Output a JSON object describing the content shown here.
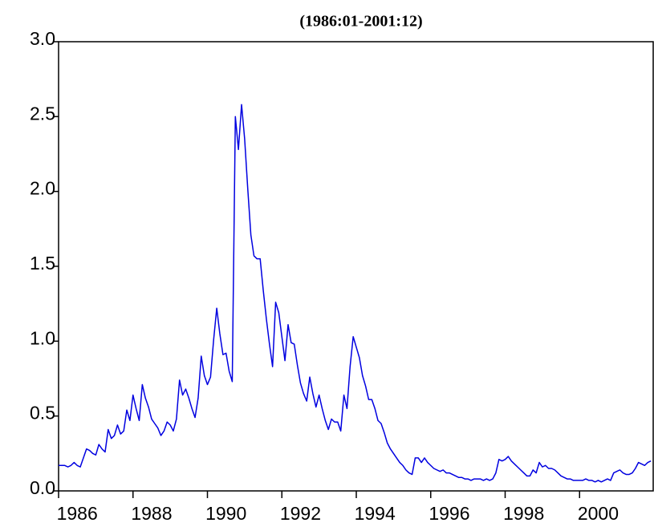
{
  "chart_data": {
    "type": "line",
    "title": "(1986:01-2001:12)",
    "x": [
      1986,
      1986.083,
      1986.167,
      1986.25,
      1986.333,
      1986.417,
      1986.5,
      1986.583,
      1986.667,
      1986.75,
      1986.833,
      1986.917,
      1987,
      1987.083,
      1987.167,
      1987.25,
      1987.333,
      1987.417,
      1987.5,
      1987.583,
      1987.667,
      1987.75,
      1987.833,
      1987.917,
      1988,
      1988.083,
      1988.167,
      1988.25,
      1988.333,
      1988.417,
      1988.5,
      1988.583,
      1988.667,
      1988.75,
      1988.833,
      1988.917,
      1989,
      1989.083,
      1989.167,
      1989.25,
      1989.333,
      1989.417,
      1989.5,
      1989.583,
      1989.667,
      1989.75,
      1989.833,
      1989.917,
      1990,
      1990.083,
      1990.167,
      1990.25,
      1990.333,
      1990.417,
      1990.5,
      1990.583,
      1990.667,
      1990.75,
      1990.833,
      1990.917,
      1991,
      1991.083,
      1991.167,
      1991.25,
      1991.333,
      1991.417,
      1991.5,
      1991.583,
      1991.667,
      1991.75,
      1991.833,
      1991.917,
      1992,
      1992.083,
      1992.167,
      1992.25,
      1992.333,
      1992.417,
      1992.5,
      1992.583,
      1992.667,
      1992.75,
      1992.833,
      1992.917,
      1993,
      1993.083,
      1993.167,
      1993.25,
      1993.333,
      1993.417,
      1993.5,
      1993.583,
      1993.667,
      1993.75,
      1993.833,
      1993.917,
      1994,
      1994.083,
      1994.167,
      1994.25,
      1994.333,
      1994.417,
      1994.5,
      1994.583,
      1994.667,
      1994.75,
      1994.833,
      1994.917,
      1995,
      1995.083,
      1995.167,
      1995.25,
      1995.333,
      1995.417,
      1995.5,
      1995.583,
      1995.667,
      1995.75,
      1995.833,
      1995.917,
      1996,
      1996.083,
      1996.167,
      1996.25,
      1996.333,
      1996.417,
      1996.5,
      1996.583,
      1996.667,
      1996.75,
      1996.833,
      1996.917,
      1997,
      1997.083,
      1997.167,
      1997.25,
      1997.333,
      1997.417,
      1997.5,
      1997.583,
      1997.667,
      1997.75,
      1997.833,
      1997.917,
      1998,
      1998.083,
      1998.167,
      1998.25,
      1998.333,
      1998.417,
      1998.5,
      1998.583,
      1998.667,
      1998.75,
      1998.833,
      1998.917,
      1999,
      1999.083,
      1999.167,
      1999.25,
      1999.333,
      1999.417,
      1999.5,
      1999.583,
      1999.667,
      1999.75,
      1999.833,
      1999.917,
      2000,
      2000.083,
      2000.167,
      2000.25,
      2000.333,
      2000.417,
      2000.5,
      2000.583,
      2000.667,
      2000.75,
      2000.833,
      2000.917,
      2001,
      2001.083,
      2001.167,
      2001.25,
      2001.333,
      2001.417,
      2001.5,
      2001.583,
      2001.667,
      2001.75,
      2001.833,
      2001.917
    ],
    "values": [
      0.17,
      0.17,
      0.17,
      0.16,
      0.17,
      0.19,
      0.17,
      0.16,
      0.22,
      0.28,
      0.27,
      0.25,
      0.24,
      0.31,
      0.28,
      0.26,
      0.41,
      0.35,
      0.37,
      0.44,
      0.38,
      0.4,
      0.54,
      0.47,
      0.64,
      0.55,
      0.47,
      0.71,
      0.62,
      0.56,
      0.48,
      0.45,
      0.42,
      0.37,
      0.4,
      0.46,
      0.44,
      0.4,
      0.48,
      0.74,
      0.64,
      0.68,
      0.62,
      0.55,
      0.49,
      0.62,
      0.9,
      0.77,
      0.71,
      0.76,
      1.01,
      1.22,
      1.05,
      0.91,
      0.92,
      0.8,
      0.73,
      2.5,
      2.28,
      2.58,
      2.35,
      2.02,
      1.71,
      1.57,
      1.55,
      1.55,
      1.34,
      1.15,
      0.98,
      0.83,
      1.26,
      1.19,
      1.03,
      0.87,
      1.11,
      0.99,
      0.98,
      0.84,
      0.72,
      0.65,
      0.6,
      0.76,
      0.65,
      0.56,
      0.64,
      0.55,
      0.47,
      0.41,
      0.48,
      0.46,
      0.46,
      0.4,
      0.64,
      0.55,
      0.83,
      1.03,
      0.96,
      0.89,
      0.77,
      0.7,
      0.61,
      0.61,
      0.55,
      0.47,
      0.45,
      0.39,
      0.32,
      0.28,
      0.25,
      0.22,
      0.19,
      0.17,
      0.14,
      0.12,
      0.11,
      0.22,
      0.22,
      0.19,
      0.22,
      0.19,
      0.17,
      0.15,
      0.14,
      0.13,
      0.14,
      0.12,
      0.12,
      0.11,
      0.1,
      0.09,
      0.09,
      0.08,
      0.08,
      0.07,
      0.08,
      0.08,
      0.08,
      0.07,
      0.08,
      0.07,
      0.08,
      0.12,
      0.21,
      0.2,
      0.21,
      0.23,
      0.2,
      0.18,
      0.16,
      0.14,
      0.12,
      0.1,
      0.1,
      0.14,
      0.12,
      0.19,
      0.16,
      0.17,
      0.15,
      0.15,
      0.14,
      0.12,
      0.1,
      0.09,
      0.08,
      0.08,
      0.07,
      0.07,
      0.07,
      0.07,
      0.08,
      0.07,
      0.07,
      0.06,
      0.07,
      0.06,
      0.07,
      0.08,
      0.07,
      0.12,
      0.13,
      0.14,
      0.12,
      0.11,
      0.11,
      0.12,
      0.15,
      0.19,
      0.18,
      0.17,
      0.19,
      0.2
    ],
    "color": "#0000e0",
    "xlim": [
      1986,
      2002
    ],
    "ylim": [
      0,
      3
    ],
    "xticks": [
      1986,
      1988,
      1990,
      1992,
      1994,
      1996,
      1998,
      2000
    ],
    "yticks": [
      {
        "value": 0,
        "label": "0.0"
      },
      {
        "value": 0.5,
        "label": "0.5"
      },
      {
        "value": 1,
        "label": "1.0"
      },
      {
        "value": 1.5,
        "label": "1.5"
      },
      {
        "value": 2,
        "label": "2.0"
      },
      {
        "value": 2.5,
        "label": "2.5"
      },
      {
        "value": 3,
        "label": "3.0"
      }
    ]
  }
}
